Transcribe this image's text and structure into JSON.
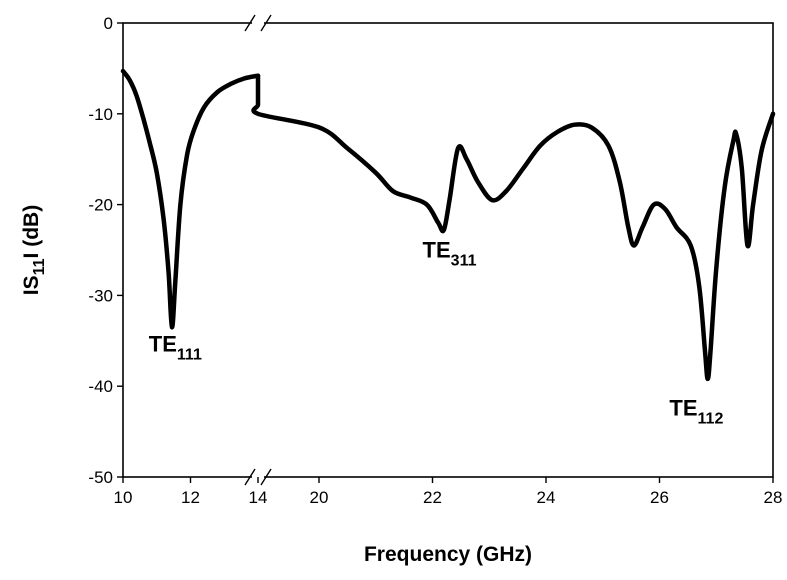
{
  "chart_data": {
    "type": "line",
    "title": "",
    "xlabel": "Frequency (GHz)",
    "ylabel": {
      "prefix": "IS",
      "sub": "11",
      "suffix": "I (dB)"
    },
    "xlim": [
      10,
      28
    ],
    "ylim": [
      -50,
      0
    ],
    "x_axis_break": {
      "between": [
        14,
        20
      ],
      "marker": "double-slash"
    },
    "x_ticks": [
      10,
      12,
      14,
      20,
      22,
      24,
      26,
      28
    ],
    "x_tick_labels": [
      "10",
      "12",
      "14",
      "20",
      "22",
      "24",
      "26",
      "28"
    ],
    "y_ticks": [
      0,
      -10,
      -20,
      -30,
      -40,
      -50
    ],
    "y_tick_labels": [
      "0",
      "-10",
      "-20",
      "-30",
      "-40",
      "-50"
    ],
    "grid": false,
    "legend": "none",
    "line_color": "#000000",
    "series": [
      {
        "segments": [
          [
            [
              10.0,
              -5.3
            ],
            [
              10.2,
              -6.3
            ],
            [
              10.4,
              -8.0
            ],
            [
              10.6,
              -10.5
            ],
            [
              10.8,
              -13.3
            ],
            [
              11.0,
              -16.5
            ],
            [
              11.2,
              -21.5
            ],
            [
              11.35,
              -27.5
            ],
            [
              11.45,
              -33.5
            ],
            [
              11.55,
              -28.5
            ],
            [
              11.7,
              -20.0
            ],
            [
              11.9,
              -14.5
            ],
            [
              12.1,
              -11.8
            ],
            [
              12.4,
              -9.3
            ],
            [
              12.8,
              -7.6
            ],
            [
              13.2,
              -6.7
            ],
            [
              13.6,
              -6.1
            ],
            [
              14.0,
              -5.8
            ]
          ],
          [
            [
              14.25,
              -5.8
            ],
            [
              15.0,
              -6.0
            ],
            [
              16.0,
              -6.3
            ],
            [
              17.0,
              -7.0
            ],
            [
              18.0,
              -7.8
            ],
            [
              19.0,
              -9.0
            ],
            [
              19.5,
              -10.0
            ],
            [
              20.0,
              -11.5
            ],
            [
              20.5,
              -13.8
            ],
            [
              21.0,
              -16.5
            ],
            [
              21.3,
              -18.5
            ],
            [
              21.6,
              -19.2
            ],
            [
              21.9,
              -20.0
            ],
            [
              22.1,
              -22.0
            ],
            [
              22.2,
              -22.8
            ],
            [
              22.3,
              -19.5
            ],
            [
              22.45,
              -13.8
            ],
            [
              22.6,
              -15.0
            ],
            [
              22.8,
              -17.5
            ],
            [
              23.05,
              -19.5
            ],
            [
              23.3,
              -18.5
            ],
            [
              23.6,
              -16.0
            ],
            [
              23.9,
              -13.5
            ],
            [
              24.2,
              -12.0
            ],
            [
              24.5,
              -11.2
            ],
            [
              24.8,
              -11.5
            ],
            [
              25.1,
              -13.5
            ],
            [
              25.3,
              -17.5
            ],
            [
              25.45,
              -22.5
            ],
            [
              25.55,
              -24.5
            ],
            [
              25.7,
              -22.5
            ],
            [
              25.9,
              -20.0
            ],
            [
              26.1,
              -20.5
            ],
            [
              26.3,
              -22.5
            ],
            [
              26.55,
              -24.5
            ],
            [
              26.7,
              -29.0
            ],
            [
              26.8,
              -36.0
            ],
            [
              26.85,
              -39.2
            ],
            [
              26.9,
              -36.0
            ],
            [
              27.0,
              -27.0
            ],
            [
              27.15,
              -18.0
            ],
            [
              27.3,
              -13.0
            ],
            [
              27.35,
              -12.2
            ],
            [
              27.45,
              -16.0
            ],
            [
              27.55,
              -24.5
            ],
            [
              27.65,
              -20.0
            ],
            [
              27.8,
              -14.0
            ],
            [
              28.0,
              -10.0
            ]
          ]
        ]
      }
    ],
    "annotations": [
      {
        "main": "TE",
        "sub": "111",
        "x": 11.55,
        "y": -36.2
      },
      {
        "main": "TE",
        "sub": "311",
        "x": 22.3,
        "y": -25.8
      },
      {
        "main": "TE",
        "sub": "112",
        "x": 26.65,
        "y": -43.2
      }
    ]
  }
}
